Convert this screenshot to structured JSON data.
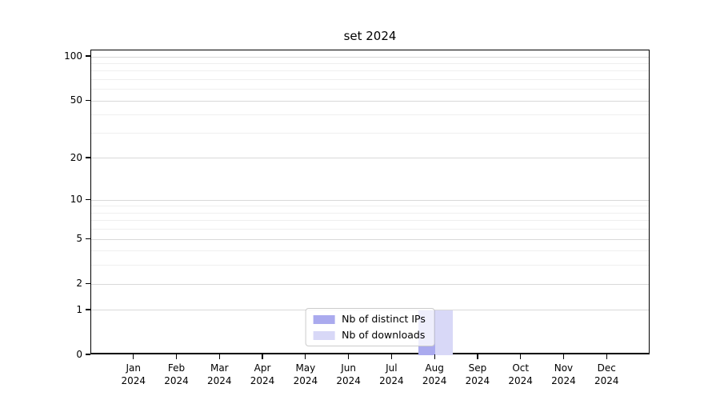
{
  "chart_data": {
    "type": "bar",
    "title": "set 2024",
    "xlabel": "",
    "ylabel": "",
    "categories": [
      "Jan 2024",
      "Feb 2024",
      "Mar 2024",
      "Apr 2024",
      "May 2024",
      "Jun 2024",
      "Jul 2024",
      "Aug 2024",
      "Sep 2024",
      "Oct 2024",
      "Nov 2024",
      "Dec 2024"
    ],
    "series": [
      {
        "name": "Nb of distinct IPs",
        "color": "#aaaaee",
        "values": [
          0,
          0,
          0,
          0,
          0,
          0,
          0,
          1,
          0,
          0,
          0,
          0
        ]
      },
      {
        "name": "Nb of downloads",
        "color": "#d8d8f7",
        "values": [
          0,
          0,
          0,
          0,
          0,
          0,
          0,
          1,
          0,
          0,
          0,
          0
        ]
      }
    ],
    "y_scale": "log1p",
    "ylim": [
      0,
      100
    ],
    "y_ticks": [
      0,
      1,
      2,
      5,
      10,
      20,
      50,
      100
    ],
    "y_minor_gridlines": [
      3,
      4,
      6,
      7,
      8,
      9,
      30,
      40,
      60,
      70,
      80,
      90
    ],
    "grid": "both",
    "legend_position": "lower center"
  },
  "colors": {
    "grid_major": "#d9d9d9",
    "grid_minor": "#efefef",
    "spine": "#000000",
    "legend_border": "#cccccc",
    "background": "#ffffff"
  }
}
